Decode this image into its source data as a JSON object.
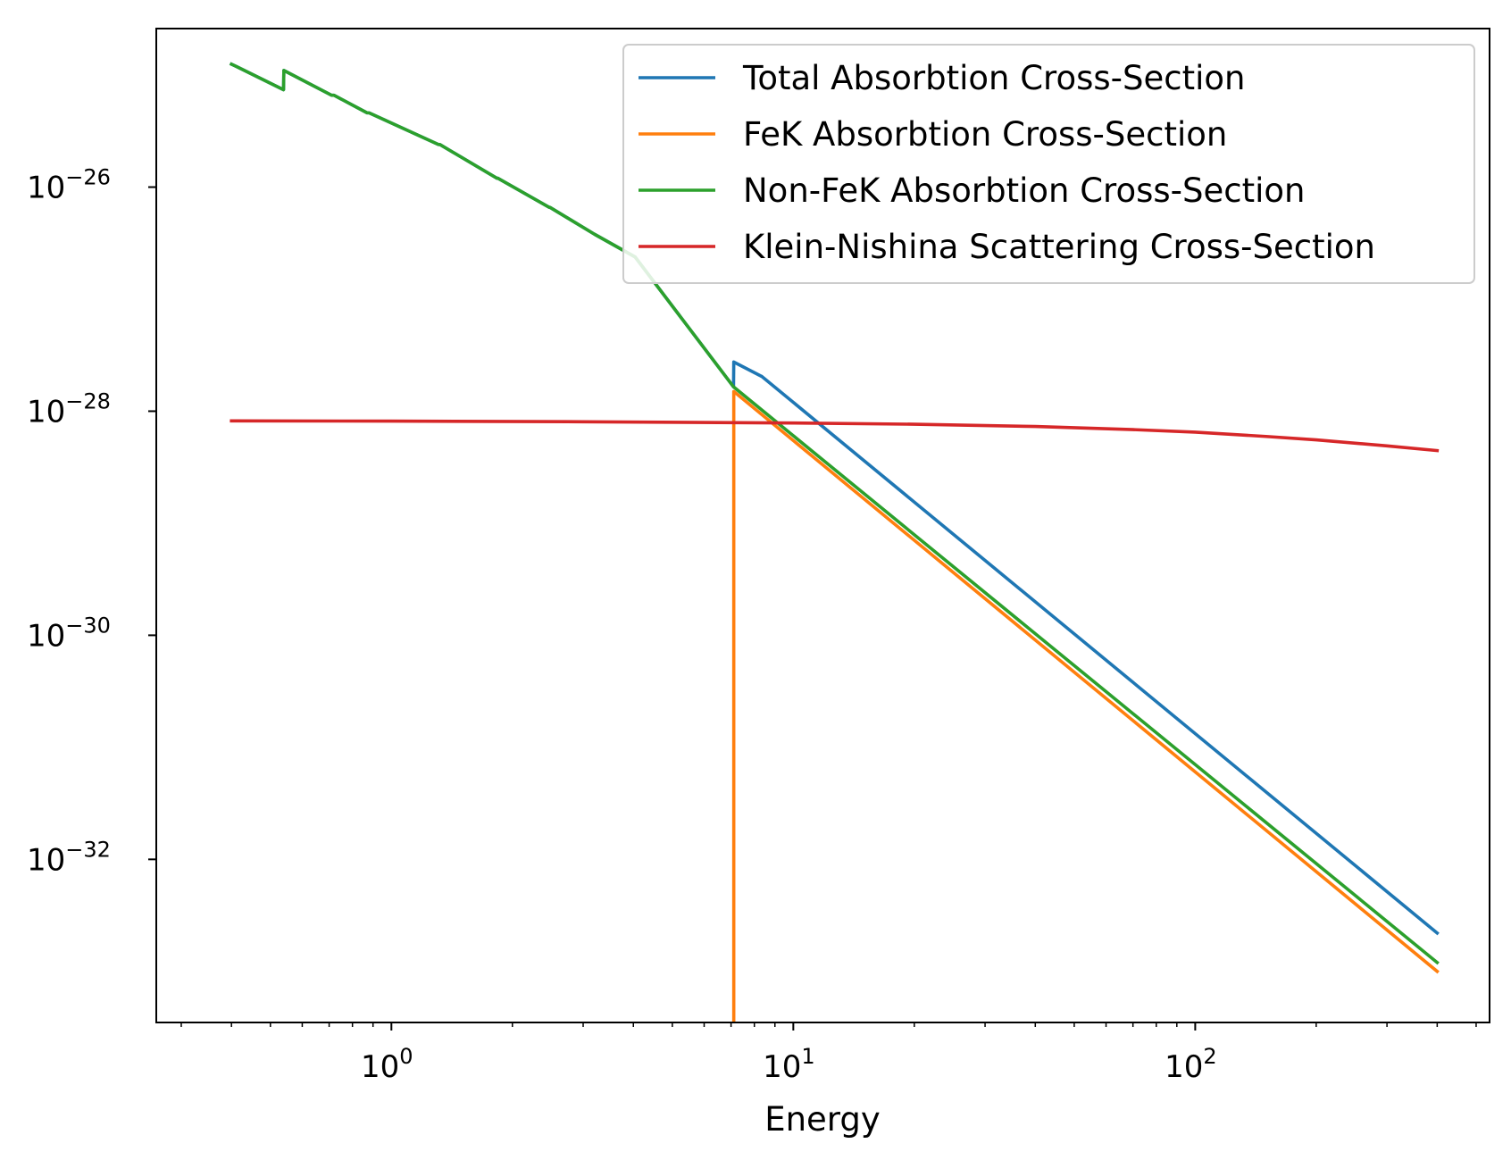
{
  "chart_data": {
    "type": "line",
    "title": "",
    "xlabel": "Energy",
    "ylabel": "",
    "xscale": "log",
    "yscale": "log",
    "xlim": [
      0.26,
      540
    ],
    "ylim": [
      3.5e-34,
      2.6e-25
    ],
    "grid": false,
    "legend_position": "top-right",
    "xticks": [
      {
        "value": 1,
        "base": "10",
        "exp": "0"
      },
      {
        "value": 10,
        "base": "10",
        "exp": "1"
      },
      {
        "value": 100,
        "base": "10",
        "exp": "2"
      }
    ],
    "yticks": [
      {
        "value": 1e-26,
        "base": "10",
        "exp": "−26"
      },
      {
        "value": 1e-28,
        "base": "10",
        "exp": "−28"
      },
      {
        "value": 1e-30,
        "base": "10",
        "exp": "−30"
      },
      {
        "value": 1e-32,
        "base": "10",
        "exp": "−32"
      }
    ],
    "series": [
      {
        "name": "Total Absorbtion Cross-Section",
        "color": "#1f77b4",
        "points": [
          [
            0.4,
            1.25e-25
          ],
          [
            0.41,
            1.2e-25
          ],
          [
            0.539,
            7.4e-26
          ],
          [
            0.54,
            1.1e-25
          ],
          [
            0.71,
            6.6e-26
          ],
          [
            0.72,
            6.6e-26
          ],
          [
            0.87,
            4.6e-26
          ],
          [
            0.88,
            4.6e-26
          ],
          [
            1.31,
            2.4e-26
          ],
          [
            1.32,
            2.4e-26
          ],
          [
            1.83,
            1.2e-26
          ],
          [
            1.84,
            1.2e-26
          ],
          [
            2.47,
            6.6e-27
          ],
          [
            2.48,
            6.6e-27
          ],
          [
            3.2,
            3.8e-27
          ],
          [
            4.04,
            2.38e-27
          ],
          [
            7.1,
            1.65e-28
          ],
          [
            7.11,
            2.75e-28
          ],
          [
            8.33,
            2.05e-28
          ],
          [
            8.34,
            2.05e-28
          ],
          [
            400,
            2.2e-33
          ]
        ]
      },
      {
        "name": "FeK Absorbtion Cross-Section",
        "color": "#ff7f0e",
        "points": [
          [
            7.1,
            2.5e-34
          ],
          [
            7.11,
            2.5e-34
          ],
          [
            7.11,
            1.5e-28
          ],
          [
            400,
            1e-33
          ]
        ]
      },
      {
        "name": "Non-FeK Absorbtion Cross-Section",
        "color": "#2ca02c",
        "points": [
          [
            0.4,
            1.25e-25
          ],
          [
            0.41,
            1.2e-25
          ],
          [
            0.539,
            7.4e-26
          ],
          [
            0.54,
            1.1e-25
          ],
          [
            0.71,
            6.6e-26
          ],
          [
            0.72,
            6.6e-26
          ],
          [
            0.87,
            4.6e-26
          ],
          [
            0.88,
            4.6e-26
          ],
          [
            1.31,
            2.4e-26
          ],
          [
            1.32,
            2.4e-26
          ],
          [
            1.83,
            1.2e-26
          ],
          [
            1.84,
            1.2e-26
          ],
          [
            2.47,
            6.6e-27
          ],
          [
            2.48,
            6.6e-27
          ],
          [
            3.2,
            3.8e-27
          ],
          [
            4.04,
            2.38e-27
          ],
          [
            7.1,
            1.65e-28
          ],
          [
            400,
            1.2e-33
          ]
        ]
      },
      {
        "name": "Klein-Nishina Scattering Cross-Section",
        "color": "#d62728",
        "points": [
          [
            0.4,
            8.2e-29
          ],
          [
            1,
            8.15e-29
          ],
          [
            3,
            8.05e-29
          ],
          [
            10,
            7.85e-29
          ],
          [
            20,
            7.65e-29
          ],
          [
            40,
            7.3e-29
          ],
          [
            70,
            6.85e-29
          ],
          [
            100,
            6.5e-29
          ],
          [
            150,
            5.95e-29
          ],
          [
            200,
            5.55e-29
          ],
          [
            300,
            4.9e-29
          ],
          [
            400,
            4.45e-29
          ]
        ]
      }
    ]
  }
}
